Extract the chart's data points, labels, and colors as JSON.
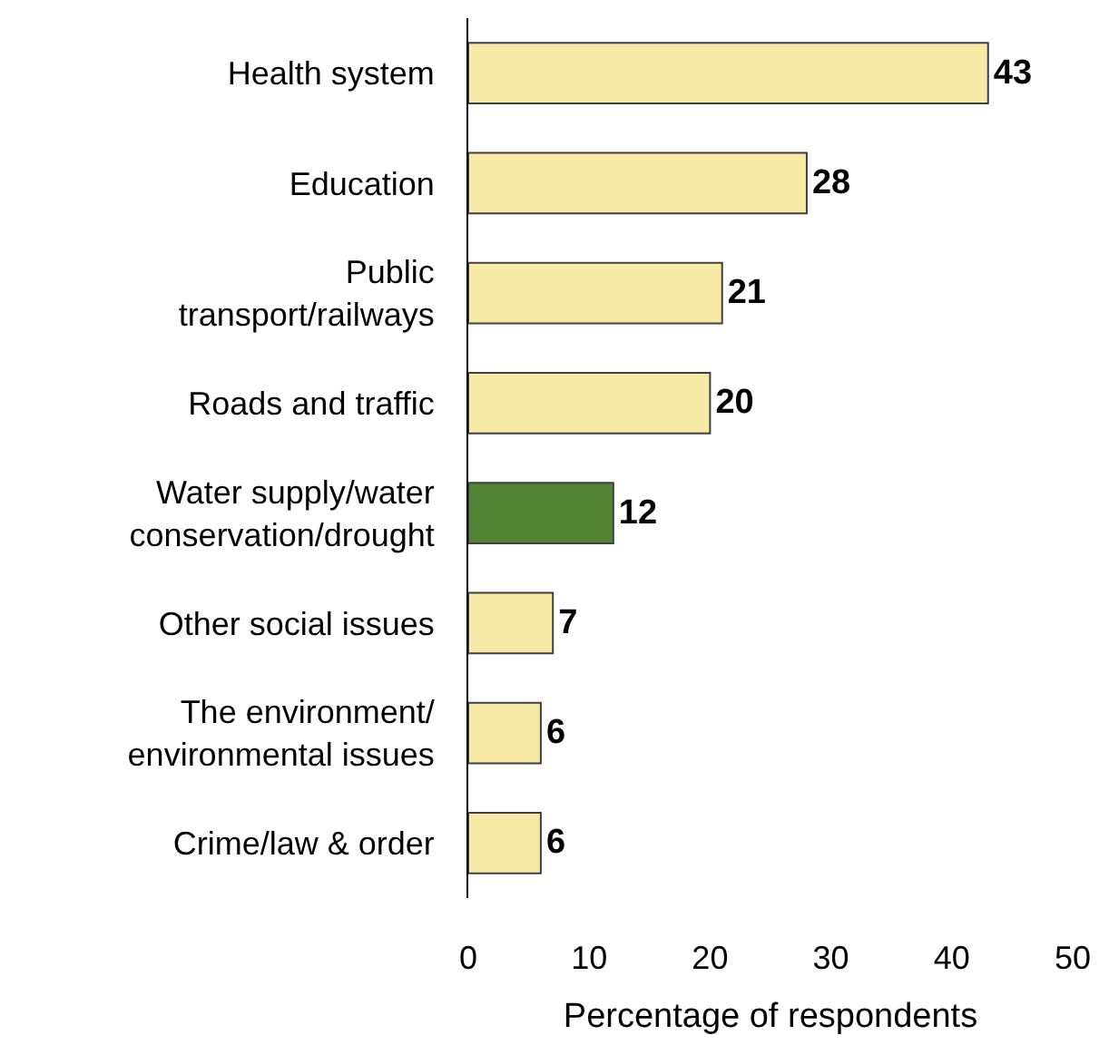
{
  "chart_data": {
    "type": "bar",
    "orientation": "horizontal",
    "xlabel": "Percentage of respondents",
    "categories": [
      "Health system",
      "Education",
      "Public\ntransport/railways",
      "Roads and traffic",
      "Water supply/water\nconservation/drought",
      "Other social issues",
      "The environment/\nenvironmental issues",
      "Crime/law & order"
    ],
    "values": [
      43,
      28,
      21,
      20,
      12,
      7,
      6,
      6
    ],
    "colors": [
      "#f7e9a6",
      "#f7e9a6",
      "#f7e9a6",
      "#f7e9a6",
      "#548235",
      "#f7e9a6",
      "#f7e9a6",
      "#f7e9a6"
    ],
    "xlim": [
      0,
      50
    ],
    "xticks": [
      0,
      10,
      20,
      30,
      40,
      50
    ],
    "data_labels": true
  }
}
